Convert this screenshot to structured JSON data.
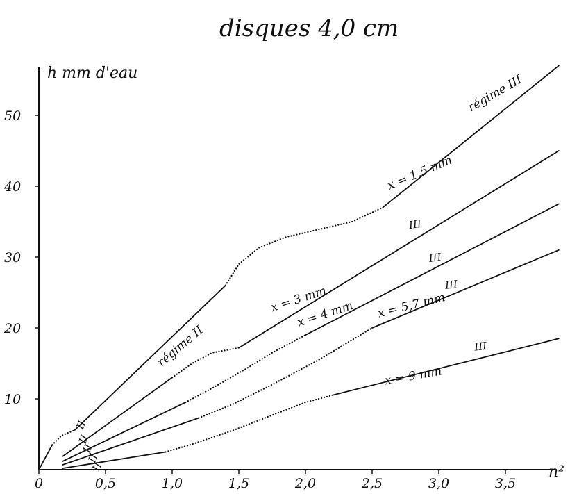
{
  "chart_data": {
    "type": "line",
    "title": "disques 4,0 cm",
    "ylabel": "h mm d'eau",
    "xlabel": "n²",
    "xlim": [
      0,
      3.9
    ],
    "ylim": [
      0,
      57
    ],
    "x_ticks": [
      "0",
      "0,5",
      "1,0",
      "1,5",
      "2,0",
      "2,5",
      "3,0",
      "3,5"
    ],
    "y_ticks": [
      "10",
      "20",
      "30",
      "40",
      "50"
    ],
    "series": [
      {
        "name": "x = 1,5 mm",
        "segments": [
          {
            "style": "solid",
            "points": [
              [
                0,
                0
              ],
              [
                0.1,
                3.5
              ]
            ]
          },
          {
            "style": "dotted",
            "points": [
              [
                0.1,
                3.5
              ],
              [
                0.17,
                4.8
              ],
              [
                0.27,
                5.6
              ]
            ]
          },
          {
            "style": "solid",
            "points": [
              [
                0.27,
                5.6
              ],
              [
                1.4,
                26
              ]
            ]
          },
          {
            "style": "dotted",
            "points": [
              [
                1.4,
                26
              ],
              [
                1.5,
                29
              ],
              [
                1.65,
                31.3
              ],
              [
                1.85,
                32.8
              ],
              [
                2.1,
                33.9
              ],
              [
                2.35,
                35
              ],
              [
                2.58,
                37
              ]
            ]
          },
          {
            "style": "solid",
            "points": [
              [
                2.58,
                37
              ],
              [
                3.9,
                57
              ]
            ]
          }
        ],
        "annotations": [
          "x = 1,5 mm",
          "régime II",
          "régime III",
          "II"
        ]
      },
      {
        "name": "x = 3 mm",
        "segments": [
          {
            "style": "solid",
            "points": [
              [
                0.18,
                1.9
              ],
              [
                1.0,
                13
              ]
            ]
          },
          {
            "style": "dotted",
            "points": [
              [
                1.0,
                13
              ],
              [
                1.15,
                15
              ],
              [
                1.3,
                16.5
              ],
              [
                1.5,
                17.2
              ]
            ]
          },
          {
            "style": "solid",
            "points": [
              [
                1.5,
                17.2
              ],
              [
                3.9,
                45
              ]
            ]
          }
        ],
        "annotations": [
          "x = 3 mm",
          "II",
          "III"
        ]
      },
      {
        "name": "x = 4 mm",
        "segments": [
          {
            "style": "solid",
            "points": [
              [
                0.18,
                1.2
              ],
              [
                1.1,
                9.5
              ]
            ]
          },
          {
            "style": "dotted",
            "points": [
              [
                1.1,
                9.5
              ],
              [
                1.3,
                11.5
              ],
              [
                1.55,
                14.2
              ],
              [
                1.75,
                16.5
              ],
              [
                2.0,
                19
              ]
            ]
          },
          {
            "style": "solid",
            "points": [
              [
                2.0,
                19
              ],
              [
                3.9,
                37.5
              ]
            ]
          }
        ],
        "annotations": [
          "x = 4 mm",
          "II",
          "III"
        ]
      },
      {
        "name": "x = 5,7 mm",
        "segments": [
          {
            "style": "solid",
            "points": [
              [
                0.18,
                0.7
              ],
              [
                1.2,
                7.3
              ]
            ]
          },
          {
            "style": "dotted",
            "points": [
              [
                1.2,
                7.3
              ],
              [
                1.45,
                9.2
              ],
              [
                1.75,
                12
              ],
              [
                2.1,
                15.5
              ],
              [
                2.5,
                20
              ]
            ]
          },
          {
            "style": "solid",
            "points": [
              [
                2.5,
                20
              ],
              [
                3.9,
                31
              ]
            ]
          }
        ],
        "annotations": [
          "x = 5,7 mm",
          "II",
          "III"
        ]
      },
      {
        "name": "x = 9 mm",
        "segments": [
          {
            "style": "solid",
            "points": [
              [
                0.18,
                0.2
              ],
              [
                0.95,
                2.5
              ]
            ]
          },
          {
            "style": "dotted",
            "points": [
              [
                0.95,
                2.5
              ],
              [
                1.15,
                3.6
              ],
              [
                1.45,
                5.5
              ],
              [
                1.75,
                7.7
              ],
              [
                2.0,
                9.5
              ],
              [
                2.2,
                10.5
              ]
            ]
          },
          {
            "style": "solid",
            "points": [
              [
                2.2,
                10.5
              ],
              [
                3.9,
                18.5
              ]
            ]
          }
        ],
        "annotations": [
          "x = 9 mm",
          "II",
          "III"
        ]
      }
    ],
    "grid": false,
    "legend": "none"
  }
}
